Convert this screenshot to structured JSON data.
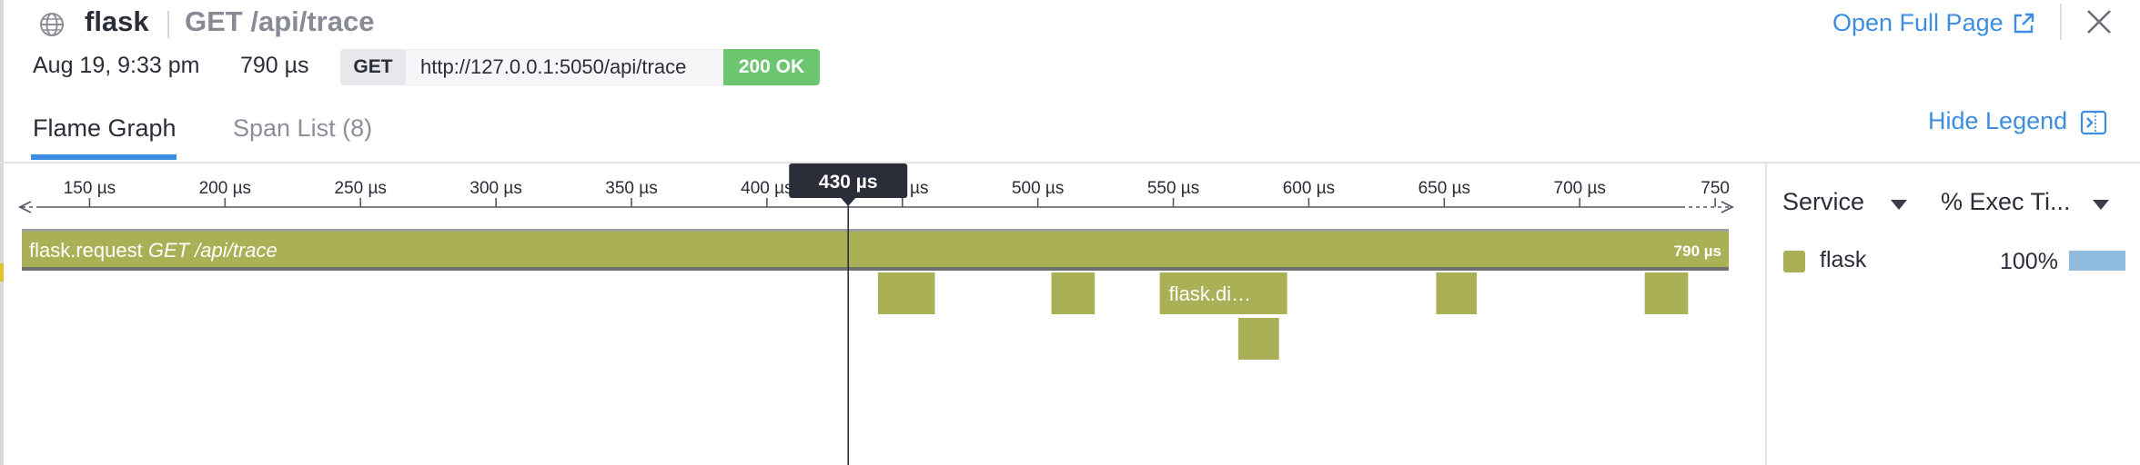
{
  "header": {
    "service": "flask",
    "resource": "GET /api/trace",
    "date": "Aug 19, 9:33 pm",
    "duration": "790 µs",
    "method": "GET",
    "url": "http://127.0.0.1:5050/api/trace",
    "status": "200 OK",
    "open_full_page": "Open Full Page",
    "icons": {
      "globe": "globe-icon",
      "external": "external-link-icon",
      "close": "close-icon"
    }
  },
  "tabs": [
    {
      "label": "Flame Graph",
      "active": true
    },
    {
      "label": "Span List (8)",
      "active": false
    }
  ],
  "hide_legend": "Hide Legend",
  "flame_graph": {
    "axis": {
      "min": 125,
      "max": 755,
      "ticks": [
        150,
        200,
        250,
        300,
        350,
        400,
        450,
        500,
        550,
        600,
        650,
        700,
        750
      ],
      "tick_labels": [
        "150 µs",
        "200 µs",
        "250 µs",
        "300 µs",
        "350 µs",
        "400 µs",
        "450 µs",
        "500 µs",
        "550 µs",
        "600 µs",
        "650 µs",
        "700 µs",
        "750"
      ]
    },
    "cursor": {
      "value": 430,
      "label": "430 µs"
    },
    "color": "#aab055",
    "root_span": {
      "name": "flask.request",
      "resource": "GET /api/trace",
      "start": 125,
      "end": 755,
      "duration_label": "790 µs"
    },
    "child_spans": [
      {
        "label": "",
        "start": 441,
        "end": 462,
        "depth": 1
      },
      {
        "label": "",
        "start": 505,
        "end": 521,
        "depth": 1
      },
      {
        "label": "flask.di…",
        "start": 545,
        "end": 592,
        "depth": 1
      },
      {
        "label": "",
        "start": 647,
        "end": 662,
        "depth": 1
      },
      {
        "label": "",
        "start": 724,
        "end": 740,
        "depth": 1
      },
      {
        "label": "",
        "start": 574,
        "end": 589,
        "depth": 2
      }
    ]
  },
  "legend": {
    "col_service": "Service",
    "col_exec": "% Exec Ti...",
    "rows": [
      {
        "service": "flask",
        "percent": "100%",
        "fraction": 1.0,
        "color": "#aab055",
        "bar_color": "#90bce0"
      }
    ]
  }
}
